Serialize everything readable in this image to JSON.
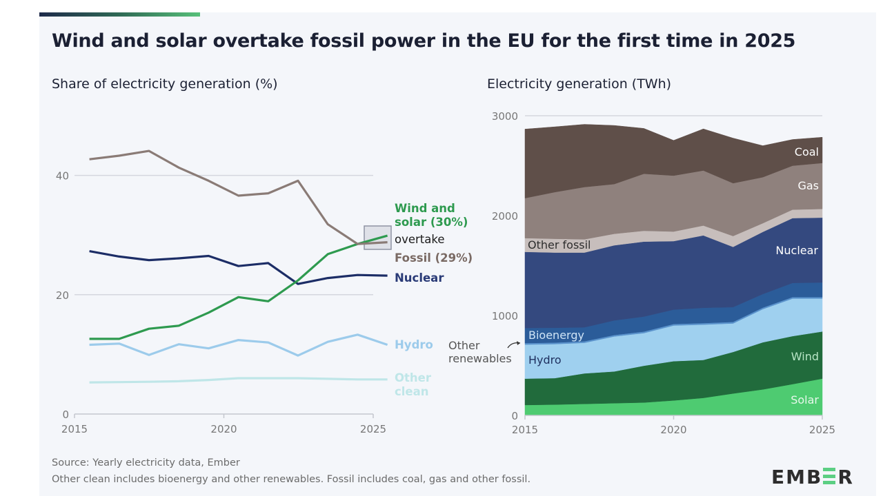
{
  "title": "Wind and solar overtake fossil power in the EU for the first time in 2025",
  "footer": {
    "source": "Source: Yearly electricity data, Ember",
    "note": "Other clean includes bioenergy and other renewables. Fossil includes coal, gas and other fossil."
  },
  "logo": "EMBER",
  "colors": {
    "accent_green": "#57c07a",
    "text": "#1b2033"
  },
  "chart_data": [
    {
      "type": "line",
      "title": "Share of electricity generation (%)",
      "x": [
        2015,
        2016,
        2017,
        2018,
        2019,
        2020,
        2021,
        2022,
        2023,
        2024,
        2025
      ],
      "xticks": [
        "2015",
        "2020",
        "2025"
      ],
      "yticks": [
        "0",
        "20",
        "40"
      ],
      "ylim": [
        0,
        50
      ],
      "grid": true,
      "series": [
        {
          "name": "Fossil (29%)",
          "color": "#8a7b76",
          "values": [
            42.7,
            43.3,
            44.1,
            41.3,
            39.1,
            36.6,
            37.0,
            39.1,
            31.8,
            28.5,
            28.8
          ]
        },
        {
          "name": "Wind and solar (30%)",
          "color": "#2e9a4f",
          "values": [
            12.6,
            12.6,
            14.3,
            14.8,
            17.0,
            19.6,
            18.9,
            22.4,
            26.8,
            28.5,
            29.9
          ]
        },
        {
          "name": "Nuclear",
          "color": "#1c2d66",
          "values": [
            27.3,
            26.4,
            25.8,
            26.1,
            26.5,
            24.8,
            25.3,
            21.8,
            22.8,
            23.3,
            23.2
          ]
        },
        {
          "name": "Hydro",
          "color": "#9ccbeb",
          "values": [
            11.6,
            11.8,
            9.9,
            11.7,
            11.0,
            12.4,
            12.0,
            9.8,
            12.1,
            13.3,
            11.6
          ]
        },
        {
          "name": "Other clean",
          "color": "#bfe6e8",
          "values": [
            5.3,
            5.35,
            5.4,
            5.5,
            5.7,
            6.0,
            6.0,
            6.0,
            5.9,
            5.8,
            5.8
          ]
        }
      ],
      "annotation": "overtake"
    },
    {
      "type": "area",
      "stacked": true,
      "title": "Electricity generation (TWh)",
      "x": [
        2015,
        2016,
        2017,
        2018,
        2019,
        2020,
        2021,
        2022,
        2023,
        2024,
        2025
      ],
      "xticks": [
        "2015",
        "2020",
        "2025"
      ],
      "yticks": [
        "0",
        "1000",
        "2000",
        "3000"
      ],
      "ylim": [
        0,
        3000
      ],
      "grid": true,
      "series": [
        {
          "name": "Solar",
          "color": "#4ecb71",
          "values": [
            104,
            108,
            115,
            122,
            129,
            150,
            175,
            219,
            260,
            313,
            368
          ]
        },
        {
          "name": "Wind",
          "color": "#216b3c",
          "values": [
            264,
            265,
            306,
            318,
            368,
            393,
            380,
            416,
            472,
            481,
            472
          ]
        },
        {
          "name": "Hydro",
          "color": "#9fd0ef",
          "values": [
            341,
            341,
            306,
            350,
            327,
            357,
            354,
            286,
            332,
            376,
            330
          ]
        },
        {
          "name": "Other renewables",
          "color": "#5b93cc",
          "values": [
            15,
            15,
            15,
            15,
            15,
            15,
            15,
            15,
            15,
            15,
            15
          ]
        },
        {
          "name": "Bioenergy",
          "color": "#2b5c99",
          "values": [
            151,
            148,
            140,
            146,
            151,
            144,
            153,
            148,
            136,
            141,
            146
          ]
        },
        {
          "name": "Nuclear",
          "color": "#34497f",
          "values": [
            762,
            753,
            748,
            752,
            750,
            686,
            725,
            603,
            622,
            649,
            649
          ]
        },
        {
          "name": "Other fossil",
          "color": "#c7bebc",
          "values": [
            138,
            138,
            133,
            115,
            108,
            96,
            99,
            109,
            87,
            85,
            87
          ]
        },
        {
          "name": "Gas",
          "color": "#8f817d",
          "values": [
            400,
            467,
            523,
            498,
            571,
            560,
            551,
            529,
            461,
            440,
            460
          ]
        },
        {
          "name": "Coal",
          "color": "#5f4f49",
          "values": [
            691,
            654,
            628,
            587,
            454,
            352,
            416,
            451,
            315,
            262,
            258
          ]
        }
      ]
    }
  ]
}
